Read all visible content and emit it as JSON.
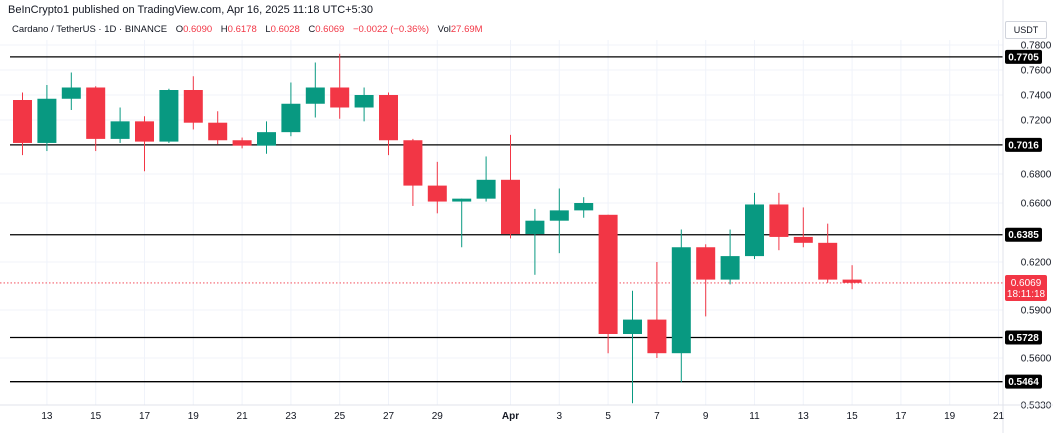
{
  "publisher": "BeInCrypto1 published on TradingView.com, Apr 16, 2025 11:18 UTC+5:30",
  "legend": {
    "symbol": "Cardano / TetherUS · 1D · BINANCE",
    "open_label": "O",
    "open": "0.6090",
    "high_label": "H",
    "high": "0.6178",
    "low_label": "L",
    "low": "0.6028",
    "close_label": "C",
    "close": "0.6069",
    "change": "−0.0022 (−0.36%)",
    "vol_label": "Vol",
    "vol": "27.69M"
  },
  "currency": "USDT",
  "colors": {
    "up": "#089981",
    "down": "#f23645",
    "level_line": "#000000",
    "level_badge": "#000000",
    "price_badge": "#f23645",
    "price_line": "#f23645"
  },
  "chart_data": {
    "type": "candlestick",
    "y_ticks": [
      "0.7800",
      "0.7600",
      "0.7400",
      "0.7200",
      "0.6800",
      "0.6600",
      "0.6200",
      "0.5900",
      "0.5600",
      "0.5330"
    ],
    "x_ticks": [
      "13",
      "15",
      "17",
      "19",
      "21",
      "23",
      "25",
      "27",
      "29",
      "Apr",
      "3",
      "5",
      "7",
      "9",
      "11",
      "13",
      "15",
      "17",
      "19",
      "21"
    ],
    "levels": [
      "0.7705",
      "0.7016",
      "0.6385",
      "0.5728",
      "0.5464"
    ],
    "current_price": "0.6069",
    "countdown": "18:11:18",
    "candles": [
      {
        "date": "Mar 12",
        "o": 0.736,
        "h": 0.742,
        "l": 0.694,
        "c": 0.703
      },
      {
        "date": "Mar 13",
        "o": 0.703,
        "h": 0.748,
        "l": 0.697,
        "c": 0.737
      },
      {
        "date": "Mar 14",
        "o": 0.737,
        "h": 0.758,
        "l": 0.728,
        "c": 0.746
      },
      {
        "date": "Mar 15",
        "o": 0.746,
        "h": 0.747,
        "l": 0.697,
        "c": 0.706
      },
      {
        "date": "Mar 16",
        "o": 0.706,
        "h": 0.73,
        "l": 0.703,
        "c": 0.719
      },
      {
        "date": "Mar 17",
        "o": 0.719,
        "h": 0.723,
        "l": 0.682,
        "c": 0.704
      },
      {
        "date": "Mar 18",
        "o": 0.704,
        "h": 0.745,
        "l": 0.703,
        "c": 0.744
      },
      {
        "date": "Mar 19",
        "o": 0.744,
        "h": 0.755,
        "l": 0.713,
        "c": 0.718
      },
      {
        "date": "Mar 20",
        "o": 0.718,
        "h": 0.727,
        "l": 0.702,
        "c": 0.705
      },
      {
        "date": "Mar 21",
        "o": 0.705,
        "h": 0.707,
        "l": 0.699,
        "c": 0.701
      },
      {
        "date": "Mar 22",
        "o": 0.701,
        "h": 0.719,
        "l": 0.695,
        "c": 0.711
      },
      {
        "date": "Mar 23",
        "o": 0.711,
        "h": 0.75,
        "l": 0.708,
        "c": 0.733
      },
      {
        "date": "Mar 24",
        "o": 0.733,
        "h": 0.766,
        "l": 0.722,
        "c": 0.746
      },
      {
        "date": "Mar 25",
        "o": 0.746,
        "h": 0.773,
        "l": 0.721,
        "c": 0.73
      },
      {
        "date": "Mar 26",
        "o": 0.73,
        "h": 0.746,
        "l": 0.719,
        "c": 0.74
      },
      {
        "date": "Mar 27",
        "o": 0.74,
        "h": 0.742,
        "l": 0.694,
        "c": 0.705
      },
      {
        "date": "Mar 28",
        "o": 0.705,
        "h": 0.706,
        "l": 0.658,
        "c": 0.672
      },
      {
        "date": "Mar 29",
        "o": 0.672,
        "h": 0.689,
        "l": 0.653,
        "c": 0.661
      },
      {
        "date": "Mar 30",
        "o": 0.661,
        "h": 0.663,
        "l": 0.63,
        "c": 0.663
      },
      {
        "date": "Mar 31",
        "o": 0.663,
        "h": 0.693,
        "l": 0.661,
        "c": 0.676
      },
      {
        "date": "Apr 1",
        "o": 0.676,
        "h": 0.709,
        "l": 0.636,
        "c": 0.639
      },
      {
        "date": "Apr 2",
        "o": 0.639,
        "h": 0.656,
        "l": 0.612,
        "c": 0.648
      },
      {
        "date": "Apr 3",
        "o": 0.648,
        "h": 0.67,
        "l": 0.626,
        "c": 0.655
      },
      {
        "date": "Apr 4",
        "o": 0.655,
        "h": 0.664,
        "l": 0.65,
        "c": 0.66
      },
      {
        "date": "Apr 5",
        "o": 0.652,
        "h": 0.652,
        "l": 0.563,
        "c": 0.575
      },
      {
        "date": "Apr 6",
        "o": 0.575,
        "h": 0.602,
        "l": 0.534,
        "c": 0.584
      },
      {
        "date": "Apr 7",
        "o": 0.584,
        "h": 0.62,
        "l": 0.56,
        "c": 0.563
      },
      {
        "date": "Apr 8",
        "o": 0.563,
        "h": 0.642,
        "l": 0.546,
        "c": 0.63
      },
      {
        "date": "Apr 9",
        "o": 0.63,
        "h": 0.632,
        "l": 0.586,
        "c": 0.609
      },
      {
        "date": "Apr 10",
        "o": 0.609,
        "h": 0.642,
        "l": 0.606,
        "c": 0.624
      },
      {
        "date": "Apr 11",
        "o": 0.624,
        "h": 0.667,
        "l": 0.622,
        "c": 0.659
      },
      {
        "date": "Apr 12",
        "o": 0.659,
        "h": 0.667,
        "l": 0.628,
        "c": 0.637
      },
      {
        "date": "Apr 13",
        "o": 0.637,
        "h": 0.657,
        "l": 0.63,
        "c": 0.633
      },
      {
        "date": "Apr 14",
        "o": 0.633,
        "h": 0.646,
        "l": 0.607,
        "c": 0.609
      },
      {
        "date": "Apr 15",
        "o": 0.609,
        "h": 0.618,
        "l": 0.603,
        "c": 0.607
      }
    ]
  }
}
